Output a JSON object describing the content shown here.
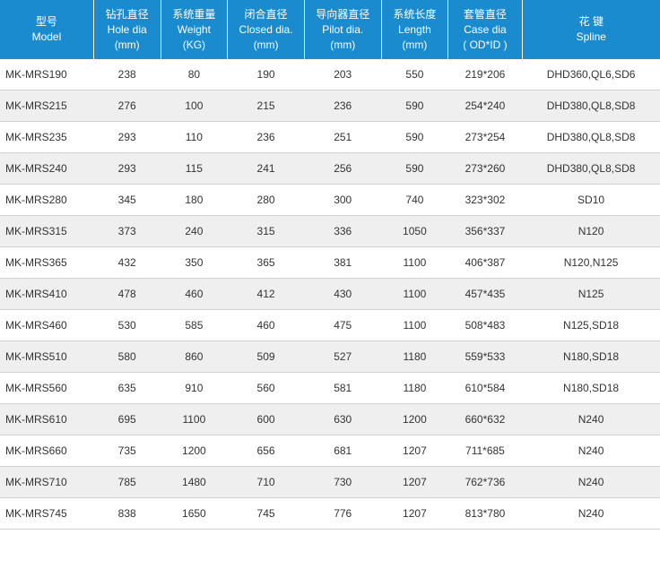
{
  "header_bg": "#1b8bd0",
  "header_fg": "#ffffff",
  "row_even_bg": "#efefef",
  "row_odd_bg": "#ffffff",
  "border_color": "#d0d0d0",
  "text_color": "#333333",
  "columns": [
    {
      "key": "model",
      "cn": "型号",
      "en": "Model",
      "unit": ""
    },
    {
      "key": "hole",
      "cn": "钻孔直径",
      "en": "Hole dia",
      "unit": "(mm)"
    },
    {
      "key": "weight",
      "cn": "系统重量",
      "en": "Weight",
      "unit": "(KG)"
    },
    {
      "key": "closed",
      "cn": "闭合直径",
      "en": "Closed dia.",
      "unit": "(mm)"
    },
    {
      "key": "pilot",
      "cn": "导向器直径",
      "en": "Pilot dia.",
      "unit": "(mm)"
    },
    {
      "key": "length",
      "cn": "系统长度",
      "en": "Length",
      "unit": "(mm)"
    },
    {
      "key": "case",
      "cn": "套管直径",
      "en": "Case dia",
      "unit": "( OD*ID )"
    },
    {
      "key": "spline",
      "cn": "花 键",
      "en": "Spline",
      "unit": ""
    }
  ],
  "rows": [
    {
      "model": "MK-MRS190",
      "hole": "238",
      "weight": "80",
      "closed": "190",
      "pilot": "203",
      "length": "550",
      "case": "219*206",
      "spline": "DHD360,QL6,SD6"
    },
    {
      "model": "MK-MRS215",
      "hole": "276",
      "weight": "100",
      "closed": "215",
      "pilot": "236",
      "length": "590",
      "case": "254*240",
      "spline": "DHD380,QL8,SD8"
    },
    {
      "model": "MK-MRS235",
      "hole": "293",
      "weight": "110",
      "closed": "236",
      "pilot": "251",
      "length": "590",
      "case": "273*254",
      "spline": "DHD380,QL8,SD8"
    },
    {
      "model": "MK-MRS240",
      "hole": "293",
      "weight": "115",
      "closed": "241",
      "pilot": "256",
      "length": "590",
      "case": "273*260",
      "spline": "DHD380,QL8,SD8"
    },
    {
      "model": "MK-MRS280",
      "hole": "345",
      "weight": "180",
      "closed": "280",
      "pilot": "300",
      "length": "740",
      "case": "323*302",
      "spline": "SD10"
    },
    {
      "model": "MK-MRS315",
      "hole": "373",
      "weight": "240",
      "closed": "315",
      "pilot": "336",
      "length": "1050",
      "case": "356*337",
      "spline": "N120"
    },
    {
      "model": "MK-MRS365",
      "hole": "432",
      "weight": "350",
      "closed": "365",
      "pilot": "381",
      "length": "1100",
      "case": "406*387",
      "spline": "N120,N125"
    },
    {
      "model": "MK-MRS410",
      "hole": "478",
      "weight": "460",
      "closed": "412",
      "pilot": "430",
      "length": "1100",
      "case": "457*435",
      "spline": "N125"
    },
    {
      "model": "MK-MRS460",
      "hole": "530",
      "weight": "585",
      "closed": "460",
      "pilot": "475",
      "length": "1100",
      "case": "508*483",
      "spline": "N125,SD18"
    },
    {
      "model": "MK-MRS510",
      "hole": "580",
      "weight": "860",
      "closed": "509",
      "pilot": "527",
      "length": "1180",
      "case": "559*533",
      "spline": "N180,SD18"
    },
    {
      "model": "MK-MRS560",
      "hole": "635",
      "weight": "910",
      "closed": "560",
      "pilot": "581",
      "length": "1180",
      "case": "610*584",
      "spline": "N180,SD18"
    },
    {
      "model": "MK-MRS610",
      "hole": "695",
      "weight": "1100",
      "closed": "600",
      "pilot": "630",
      "length": "1200",
      "case": "660*632",
      "spline": "N240"
    },
    {
      "model": "MK-MRS660",
      "hole": "735",
      "weight": "1200",
      "closed": "656",
      "pilot": "681",
      "length": "1207",
      "case": "711*685",
      "spline": "N240"
    },
    {
      "model": "MK-MRS710",
      "hole": "785",
      "weight": "1480",
      "closed": "710",
      "pilot": "730",
      "length": "1207",
      "case": "762*736",
      "spline": "N240"
    },
    {
      "model": "MK-MRS745",
      "hole": "838",
      "weight": "1650",
      "closed": "745",
      "pilot": "776",
      "length": "1207",
      "case": "813*780",
      "spline": "N240"
    }
  ]
}
